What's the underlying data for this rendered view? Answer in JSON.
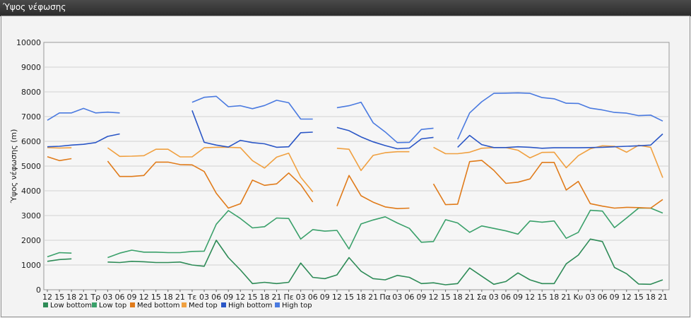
{
  "window": {
    "title": "Ύψος νέφωσης"
  },
  "chart_data": {
    "type": "line",
    "title": "",
    "xlabel": "",
    "ylabel": "Ύψος νέφωσης (m)",
    "ylim": [
      0,
      10000
    ],
    "yticks": [
      0,
      1000,
      2000,
      3000,
      4000,
      5000,
      6000,
      7000,
      8000,
      9000,
      10000
    ],
    "grid": true,
    "legend_position": "bottom-left",
    "x_tick_labels": [
      "12",
      "15",
      "18",
      "21",
      "Τρ",
      "03",
      "06",
      "09",
      "12",
      "15",
      "18",
      "21",
      "Τε",
      "03",
      "06",
      "09",
      "12",
      "15",
      "18",
      "21",
      "Πε",
      "03",
      "06",
      "09",
      "12",
      "15",
      "18",
      "21",
      "Πα",
      "03",
      "06",
      "09",
      "12",
      "15",
      "18",
      "21",
      "Σα",
      "03",
      "06",
      "09",
      "12",
      "15",
      "18",
      "21",
      "Κυ",
      "03",
      "06",
      "09",
      "12",
      "15",
      "18",
      "21"
    ],
    "x_step_hours": 3,
    "series": [
      {
        "name": "Low bottom",
        "color": "#2e8b57",
        "values": [
          1150,
          1220,
          1250,
          null,
          null,
          1120,
          1100,
          1150,
          1130,
          1100,
          1100,
          1120,
          1000,
          950,
          2000,
          1300,
          800,
          250,
          300,
          250,
          300,
          1080,
          500,
          450,
          600,
          1300,
          750,
          450,
          400,
          580,
          500,
          250,
          280,
          200,
          250,
          880,
          550,
          220,
          330,
          680,
          400,
          250,
          250,
          1050,
          1400,
          2050,
          1950,
          900,
          650,
          230,
          220,
          400
        ]
      },
      {
        "name": "Low top",
        "color": "#3aa06a",
        "values": [
          1330,
          1500,
          1480,
          null,
          null,
          1300,
          1480,
          1600,
          1520,
          1520,
          1500,
          1500,
          1550,
          1560,
          2650,
          3200,
          2880,
          2500,
          2550,
          2900,
          2880,
          2050,
          2430,
          2370,
          2400,
          1650,
          2660,
          2820,
          2950,
          2700,
          2480,
          1920,
          1950,
          2830,
          2700,
          2320,
          2580,
          2480,
          2380,
          2250,
          2780,
          2730,
          2780,
          2080,
          2320,
          3210,
          3180,
          2510,
          2900,
          3300,
          3300,
          3100
        ]
      },
      {
        "name": "Med bottom",
        "color": "#e07b1a",
        "values": [
          5380,
          5220,
          5300,
          null,
          null,
          5200,
          4580,
          4580,
          4620,
          5160,
          5160,
          5060,
          5050,
          4780,
          3900,
          3300,
          3480,
          4430,
          4220,
          4280,
          4720,
          4250,
          3550,
          null,
          3380,
          4620,
          3800,
          3540,
          3350,
          3280,
          3300,
          null,
          4280,
          3440,
          3460,
          5180,
          5230,
          4830,
          4300,
          4350,
          4480,
          5150,
          5150,
          4030,
          4380,
          3480,
          3380,
          3300,
          3330,
          3320,
          3300,
          3650
        ]
      },
      {
        "name": "Med top",
        "color": "#f0a040",
        "values": [
          5750,
          5730,
          5740,
          null,
          null,
          5740,
          5390,
          5400,
          5420,
          5680,
          5680,
          5370,
          5370,
          5740,
          5760,
          5760,
          5740,
          5220,
          4920,
          5360,
          5520,
          4550,
          3960,
          null,
          5720,
          5680,
          4820,
          5430,
          5540,
          5580,
          5580,
          null,
          5760,
          5500,
          5500,
          5560,
          5720,
          5750,
          5750,
          5640,
          5330,
          5550,
          5560,
          4930,
          5420,
          5700,
          5820,
          5800,
          5560,
          5840,
          5760,
          4530
        ]
      },
      {
        "name": "High bottom",
        "color": "#2a56c6",
        "values": [
          5780,
          5800,
          5850,
          5880,
          5950,
          6200,
          6300,
          null,
          null,
          null,
          null,
          null,
          7250,
          5960,
          5850,
          5770,
          6040,
          5950,
          5900,
          5760,
          5780,
          6350,
          6370,
          null,
          6560,
          6430,
          6180,
          5980,
          5830,
          5700,
          5730,
          6100,
          6160,
          null,
          5760,
          6240,
          5870,
          5750,
          5750,
          5780,
          5760,
          5720,
          5740,
          5740,
          5740,
          5750,
          5760,
          5780,
          5800,
          5820,
          5850,
          6300
        ]
      },
      {
        "name": "High top",
        "color": "#4a7ae0",
        "values": [
          6850,
          7150,
          7150,
          7330,
          7150,
          7180,
          7150,
          null,
          null,
          null,
          null,
          null,
          7580,
          7780,
          7820,
          7400,
          7440,
          7320,
          7450,
          7660,
          7560,
          6900,
          6900,
          null,
          7360,
          7440,
          7580,
          6750,
          6380,
          5950,
          5960,
          6480,
          6530,
          null,
          6080,
          7150,
          7600,
          7940,
          7950,
          7960,
          7940,
          7770,
          7720,
          7540,
          7530,
          7340,
          7270,
          7170,
          7140,
          7040,
          7060,
          6820
        ]
      }
    ]
  }
}
